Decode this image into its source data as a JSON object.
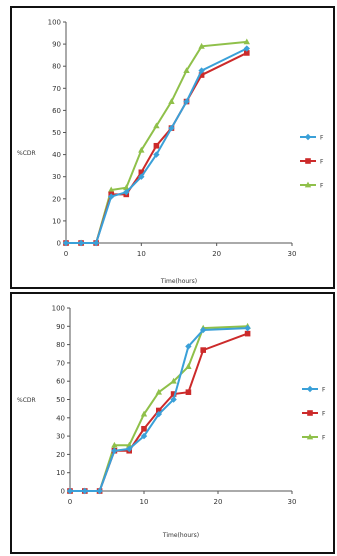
{
  "chart_data": [
    {
      "type": "line",
      "title": "",
      "xlabel": "Time(hours)",
      "ylabel": "%CDR",
      "xlim": [
        0,
        30
      ],
      "ylim": [
        0,
        100
      ],
      "xticks": [
        0,
        10,
        20,
        30
      ],
      "yticks": [
        0,
        10,
        20,
        30,
        40,
        50,
        60,
        70,
        80,
        90,
        100
      ],
      "grid": false,
      "legend": "right",
      "series": [
        {
          "name": "F",
          "color": "#3aa0d8",
          "marker": "diamond",
          "x": [
            0,
            2,
            4,
            6,
            8,
            10,
            12,
            14,
            16,
            18,
            24
          ],
          "y": [
            0,
            0,
            0,
            21,
            23,
            30,
            40,
            52,
            64,
            78,
            88
          ]
        },
        {
          "name": "F",
          "color": "#cc2a2a",
          "marker": "square",
          "x": [
            0,
            2,
            4,
            6,
            8,
            10,
            12,
            14,
            16,
            18,
            24
          ],
          "y": [
            0,
            0,
            0,
            22,
            22,
            32,
            44,
            52,
            64,
            76,
            86
          ]
        },
        {
          "name": "F",
          "color": "#8fc04a",
          "marker": "triangle",
          "x": [
            0,
            2,
            4,
            6,
            8,
            10,
            12,
            14,
            16,
            18,
            24
          ],
          "y": [
            0,
            0,
            0,
            24,
            25,
            42,
            53,
            64,
            78,
            89,
            91
          ]
        }
      ]
    },
    {
      "type": "line",
      "title": "",
      "xlabel": "Time(hours)",
      "ylabel": "%CDR",
      "xlim": [
        0,
        30
      ],
      "ylim": [
        0,
        100
      ],
      "xticks": [
        0,
        10,
        20,
        30
      ],
      "yticks": [
        0,
        10,
        20,
        30,
        40,
        50,
        60,
        70,
        80,
        90,
        100
      ],
      "grid": false,
      "legend": "right",
      "series": [
        {
          "name": "F",
          "color": "#3aa0d8",
          "marker": "diamond",
          "x": [
            0,
            2,
            4,
            6,
            8,
            10,
            12,
            14,
            16,
            18,
            24
          ],
          "y": [
            0,
            0,
            0,
            22,
            23,
            30,
            42,
            50,
            79,
            88,
            89
          ]
        },
        {
          "name": "F",
          "color": "#cc2a2a",
          "marker": "square",
          "x": [
            0,
            2,
            4,
            6,
            8,
            10,
            12,
            14,
            16,
            18,
            24
          ],
          "y": [
            0,
            0,
            0,
            22,
            22,
            34,
            44,
            53,
            54,
            77,
            86
          ]
        },
        {
          "name": "F",
          "color": "#8fc04a",
          "marker": "triangle",
          "x": [
            0,
            2,
            4,
            6,
            8,
            10,
            12,
            14,
            16,
            18,
            24
          ],
          "y": [
            0,
            0,
            0,
            25,
            25,
            42,
            54,
            60,
            68,
            89,
            90
          ]
        }
      ]
    }
  ]
}
